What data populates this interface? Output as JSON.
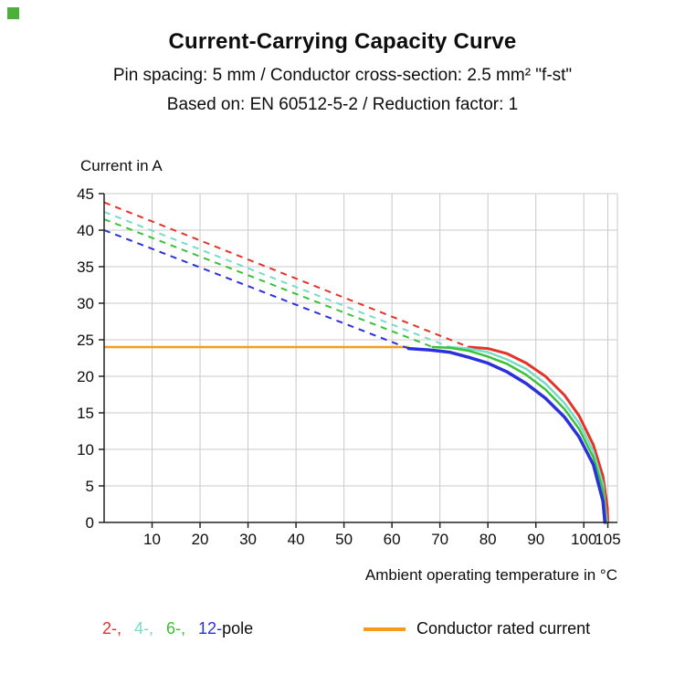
{
  "brand": {
    "corner_square_color": "#4ab03a"
  },
  "header": {
    "title": "Current-Carrying Capacity Curve",
    "subtitle_line1": "Pin spacing: 5 mm / Conductor cross-section: 2.5 mm² \"f-st\"",
    "subtitle_line2": "Based on: EN 60512-5-2 / Reduction factor: 1"
  },
  "chart_data": {
    "type": "line",
    "title": "Current-Carrying Capacity Curve",
    "ylabel": "Current in A",
    "xlabel": "Ambient operating temperature in °C",
    "xlim": [
      0,
      107
    ],
    "ylim": [
      0,
      45
    ],
    "xticks": [
      10,
      20,
      30,
      40,
      50,
      60,
      70,
      80,
      90,
      100,
      105
    ],
    "yticks": [
      0,
      5,
      10,
      15,
      20,
      25,
      30,
      35,
      40,
      45
    ],
    "grid": true,
    "colors": {
      "grid": "#c9c9c9",
      "axis": "#222222"
    },
    "rated_current": {
      "label": "Conductor rated current",
      "value": 24,
      "x_start": 0,
      "x_end": 63.5,
      "color": "#f59b1e"
    },
    "legend": {
      "pole_suffix": "pole"
    },
    "series": [
      {
        "name": "2-pole",
        "legend_label": "2-,",
        "color": "#e5332a",
        "stroke_width": 3,
        "dashed": [
          [
            0,
            43.8
          ],
          [
            76,
            24
          ]
        ],
        "solid": [
          [
            76,
            24
          ],
          [
            80,
            23.8
          ],
          [
            84,
            23.1
          ],
          [
            88,
            21.8
          ],
          [
            92,
            20.0
          ],
          [
            96,
            17.4
          ],
          [
            99,
            14.6
          ],
          [
            102,
            10.6
          ],
          [
            104,
            6.3
          ],
          [
            104.9,
            2.0
          ],
          [
            105,
            0
          ]
        ]
      },
      {
        "name": "4-pole",
        "legend_label": "4-,",
        "color": "#76dcc8",
        "stroke_width": 2.5,
        "dashed": [
          [
            0,
            42.5
          ],
          [
            72,
            24
          ]
        ],
        "solid": [
          [
            72,
            24
          ],
          [
            76,
            23.8
          ],
          [
            80,
            23.3
          ],
          [
            84,
            22.3
          ],
          [
            88,
            21.0
          ],
          [
            92,
            19.0
          ],
          [
            96,
            16.3
          ],
          [
            99,
            13.6
          ],
          [
            102,
            9.7
          ],
          [
            104,
            5.2
          ],
          [
            104.8,
            0
          ]
        ]
      },
      {
        "name": "6-pole",
        "legend_label": "6-,",
        "color": "#3bc138",
        "stroke_width": 2.5,
        "dashed": [
          [
            0,
            41.5
          ],
          [
            68.5,
            24
          ]
        ],
        "solid": [
          [
            68.5,
            24
          ],
          [
            72,
            23.9
          ],
          [
            76,
            23.5
          ],
          [
            80,
            22.7
          ],
          [
            84,
            21.7
          ],
          [
            88,
            20.2
          ],
          [
            92,
            18.2
          ],
          [
            96,
            15.5
          ],
          [
            99,
            12.8
          ],
          [
            102,
            8.9
          ],
          [
            104,
            4.4
          ],
          [
            104.6,
            0
          ]
        ]
      },
      {
        "name": "12-pole",
        "legend_label": "12-",
        "color": "#2b30dd",
        "stroke_width": 3.5,
        "dashed": [
          [
            0,
            40.0
          ],
          [
            63.5,
            23.8
          ]
        ],
        "solid": [
          [
            63.5,
            23.8
          ],
          [
            68,
            23.6
          ],
          [
            72,
            23.3
          ],
          [
            76,
            22.6
          ],
          [
            80,
            21.8
          ],
          [
            84,
            20.6
          ],
          [
            88,
            19.0
          ],
          [
            92,
            17.0
          ],
          [
            96,
            14.4
          ],
          [
            99,
            11.7
          ],
          [
            102,
            7.9
          ],
          [
            104,
            2.9
          ],
          [
            104.4,
            0
          ]
        ]
      }
    ]
  }
}
